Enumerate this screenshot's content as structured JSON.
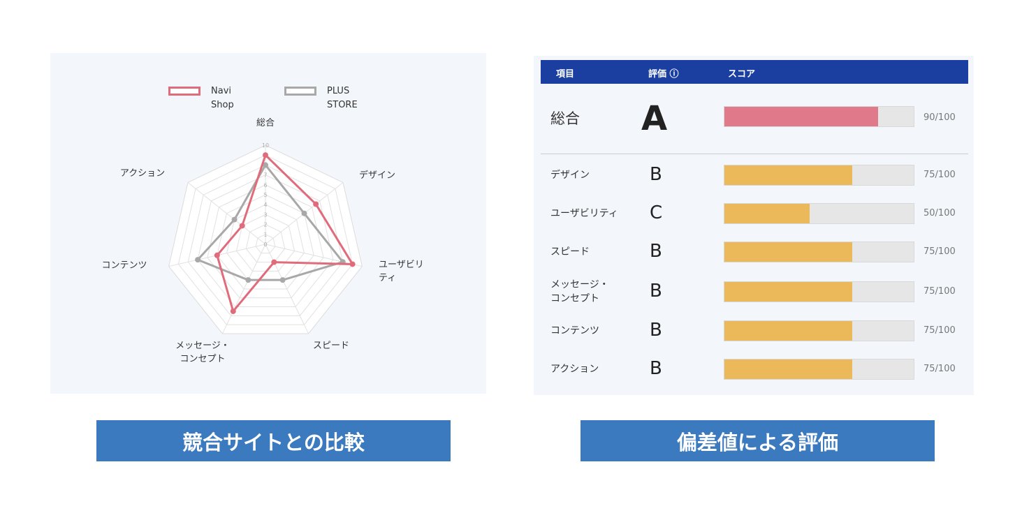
{
  "radar": {
    "legend": [
      {
        "name": "Navi\nShop",
        "color": "#e06b7b"
      },
      {
        "name": "PLUS\nSTORE",
        "color": "#a8a8a8"
      }
    ],
    "axes": [
      "総合",
      "デザイン",
      "ユーザビリ\nティ",
      "スピード",
      "メッセージ・\nコンセプト",
      "コンテンツ",
      "アクション"
    ],
    "ticks": [
      "10",
      "9",
      "8",
      "7",
      "6",
      "5",
      "4",
      "3",
      "2",
      "1",
      "0"
    ]
  },
  "chart_data": {
    "type": "radar",
    "categories": [
      "総合",
      "デザイン",
      "ユーザビリティ",
      "スピード",
      "メッセージ・コンセプト",
      "コンテンツ",
      "アクション"
    ],
    "range": [
      0,
      10
    ],
    "series": [
      {
        "name": "Navi Shop",
        "values": [
          9,
          6.5,
          9,
          2,
          7.5,
          5,
          3
        ]
      },
      {
        "name": "PLUS STORE",
        "values": [
          8,
          5,
          8,
          4,
          4,
          7,
          4
        ]
      }
    ]
  },
  "scores": {
    "header": {
      "item": "項目",
      "grade": "評価 ⓘ",
      "score": "スコア"
    },
    "overall": {
      "name": "総合",
      "grade": "A",
      "score_label": "90/100",
      "value": 90,
      "color": "#e07a8b"
    },
    "rows": [
      {
        "name": "デザイン",
        "grade": "B",
        "score_label": "75/100",
        "value": 75
      },
      {
        "name": "ユーザビリティ",
        "grade": "C",
        "score_label": "50/100",
        "value": 50
      },
      {
        "name": "スピード",
        "grade": "B",
        "score_label": "75/100",
        "value": 75
      },
      {
        "name": "メッセージ・\nコンセプト",
        "grade": "B",
        "score_label": "75/100",
        "value": 75
      },
      {
        "name": "コンテンツ",
        "grade": "B",
        "score_label": "75/100",
        "value": 75
      },
      {
        "name": "アクション",
        "grade": "B",
        "score_label": "75/100",
        "value": 75
      }
    ],
    "bar_color": "#ebb95a"
  },
  "captions": {
    "left": "競合サイトとの比較",
    "right": "偏差値による評価"
  }
}
